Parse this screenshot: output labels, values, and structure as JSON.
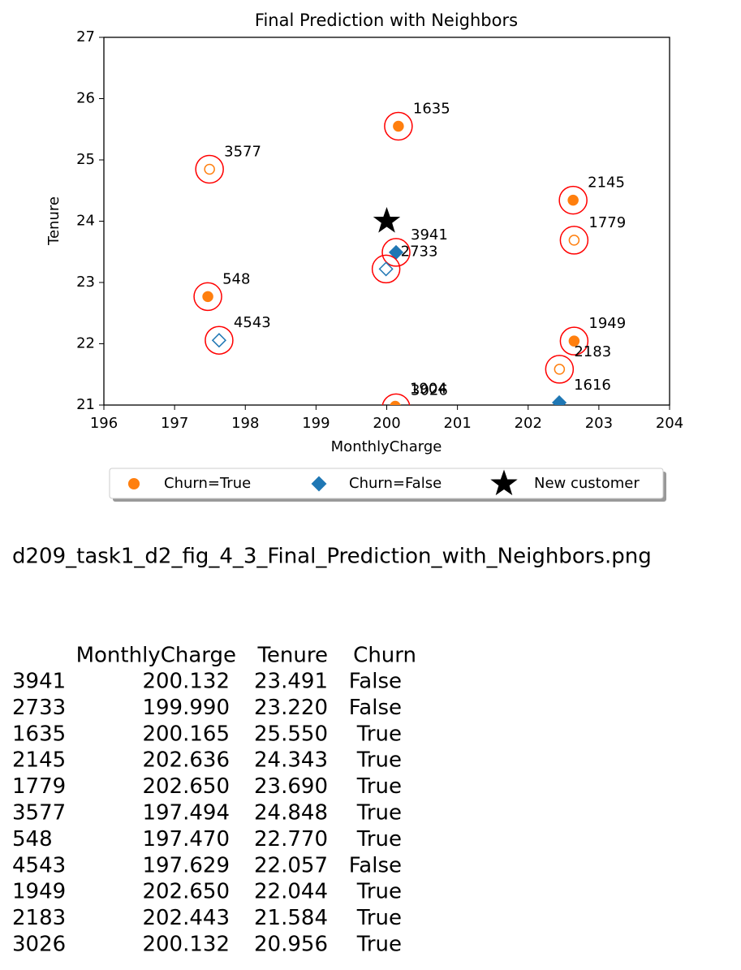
{
  "chart_data": {
    "type": "scatter",
    "title": "Final Prediction with Neighbors",
    "x_label": "MonthlyCharge",
    "y_label": "Tenure",
    "xlim": [
      196,
      204
    ],
    "ylim": [
      21,
      27
    ],
    "xticks": [
      196,
      197,
      198,
      199,
      200,
      201,
      202,
      203,
      204
    ],
    "yticks": [
      21,
      22,
      23,
      24,
      25,
      26,
      27
    ],
    "legend": "below",
    "neighbor_color": "#ff0000",
    "series": [
      {
        "name": "Churn=True",
        "color": "#ff7f0e",
        "marker": "circle",
        "labels": [
          "1635",
          "2145",
          "1779",
          "3577",
          "548",
          "1949",
          "2183",
          "3026",
          "1904"
        ],
        "x": [
          200.165,
          202.636,
          202.65,
          197.494,
          197.47,
          202.65,
          202.443,
          200.132,
          200.12
        ],
        "y": [
          25.55,
          24.343,
          23.69,
          24.848,
          22.77,
          22.044,
          21.584,
          20.956,
          20.98
        ],
        "filled": [
          true,
          true,
          false,
          false,
          true,
          true,
          false,
          false,
          true
        ],
        "neighbor": [
          true,
          true,
          true,
          true,
          true,
          true,
          true,
          true,
          false
        ]
      },
      {
        "name": "Churn=False",
        "color": "#1f77b4",
        "marker": "diamond",
        "labels": [
          "3941",
          "2733",
          "4543",
          "1616"
        ],
        "x": [
          200.132,
          199.99,
          197.629,
          202.44
        ],
        "y": [
          23.491,
          23.22,
          22.057,
          21.04
        ],
        "filled": [
          true,
          false,
          false,
          true
        ],
        "neighbor": [
          true,
          true,
          true,
          false
        ]
      },
      {
        "name": "New customer",
        "color": "#000000",
        "marker": "star",
        "x": [
          200
        ],
        "y": [
          24
        ],
        "filled": [
          true
        ],
        "neighbor": [
          false
        ]
      }
    ]
  },
  "caption": "d209_task1_d2_fig_4_3_Final_Prediction_with_Neighbors.png",
  "table": {
    "columns": [
      "MonthlyCharge",
      "Tenure",
      "Churn"
    ],
    "rows": [
      [
        "3941",
        "200.132",
        "23.491",
        "False"
      ],
      [
        "2733",
        "199.990",
        "23.220",
        "False"
      ],
      [
        "1635",
        "200.165",
        "25.550",
        "True"
      ],
      [
        "2145",
        "202.636",
        "24.343",
        "True"
      ],
      [
        "1779",
        "202.650",
        "23.690",
        "True"
      ],
      [
        "3577",
        "197.494",
        "24.848",
        "True"
      ],
      [
        "548",
        "197.470",
        "22.770",
        "True"
      ],
      [
        "4543",
        "197.629",
        "22.057",
        "False"
      ],
      [
        "1949",
        "202.650",
        "22.044",
        "True"
      ],
      [
        "2183",
        "202.443",
        "21.584",
        "True"
      ],
      [
        "3026",
        "200.132",
        "20.956",
        "True"
      ]
    ]
  }
}
